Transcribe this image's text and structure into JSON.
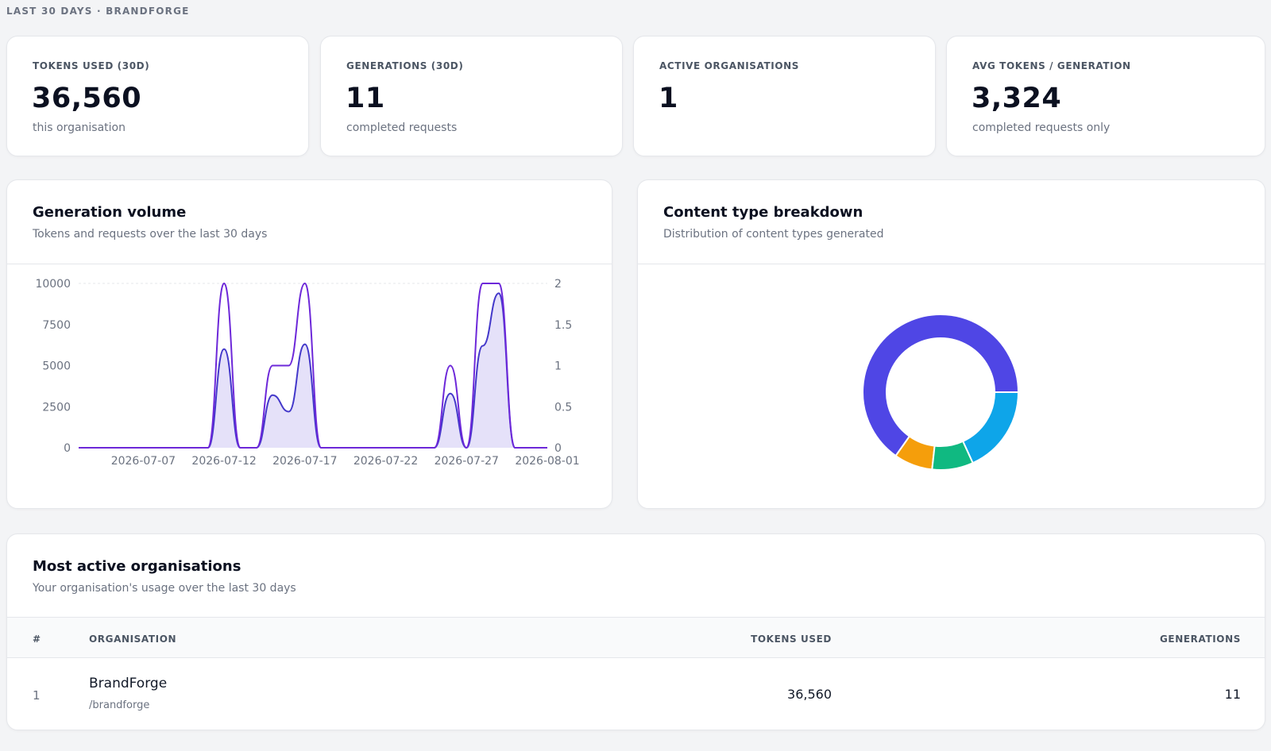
{
  "header": {
    "context": "LAST 30 DAYS · BRANDFORGE"
  },
  "stats": [
    {
      "label": "TOKENS USED (30D)",
      "value": "36,560",
      "sub": "this organisation"
    },
    {
      "label": "GENERATIONS (30D)",
      "value": "11",
      "sub": "completed requests"
    },
    {
      "label": "ACTIVE ORGANISATIONS",
      "value": "1",
      "sub": ""
    },
    {
      "label": "AVG TOKENS / GENERATION",
      "value": "3,324",
      "sub": "completed requests only"
    }
  ],
  "volume": {
    "title": "Generation volume",
    "subtitle": "Tokens and requests over the last 30 days"
  },
  "breakdown": {
    "title": "Content type breakdown",
    "subtitle": "Distribution of content types generated"
  },
  "orgs": {
    "title": "Most active organisations",
    "subtitle": "Your organisation's usage over the last 30 days",
    "columns": {
      "rank": "#",
      "org": "ORGANISATION",
      "tokens": "TOKENS USED",
      "gens": "GENERATIONS"
    },
    "rows": [
      {
        "rank": "1",
        "name": "BrandForge",
        "slug": "/brandforge",
        "tokens": "36,560",
        "gens": "11"
      }
    ]
  },
  "chart_data": [
    {
      "type": "line",
      "x_ticks": [
        "2026-07-07",
        "2026-07-12",
        "2026-07-17",
        "2026-07-22",
        "2026-07-27",
        "2026-08-01"
      ],
      "y_ticks_left": [
        "0",
        "2500",
        "5000",
        "7500",
        "10000"
      ],
      "y_ticks_right": [
        "0",
        "0.5",
        "1",
        "1.5",
        "2"
      ],
      "ylim_left": [
        0,
        10000
      ],
      "ylim_right": [
        0,
        2
      ],
      "x": [
        "2026-07-03",
        "2026-07-04",
        "2026-07-05",
        "2026-07-06",
        "2026-07-07",
        "2026-07-08",
        "2026-07-09",
        "2026-07-10",
        "2026-07-11",
        "2026-07-12",
        "2026-07-13",
        "2026-07-14",
        "2026-07-15",
        "2026-07-16",
        "2026-07-17",
        "2026-07-18",
        "2026-07-19",
        "2026-07-20",
        "2026-07-21",
        "2026-07-22",
        "2026-07-23",
        "2026-07-24",
        "2026-07-25",
        "2026-07-26",
        "2026-07-27",
        "2026-07-28",
        "2026-07-29",
        "2026-07-30",
        "2026-07-31",
        "2026-08-01"
      ],
      "series": [
        {
          "axis": "left",
          "fill": true,
          "values": [
            0,
            0,
            0,
            0,
            0,
            0,
            0,
            0,
            0,
            6000,
            0,
            0,
            3200,
            2200,
            6300,
            0,
            0,
            0,
            0,
            0,
            0,
            0,
            0,
            3300,
            0,
            6200,
            9400,
            0,
            0,
            0
          ]
        },
        {
          "axis": "right",
          "fill": false,
          "values": [
            0,
            0,
            0,
            0,
            0,
            0,
            0,
            0,
            0,
            2,
            0,
            0,
            1,
            1,
            2,
            0,
            0,
            0,
            0,
            0,
            0,
            0,
            0,
            1,
            0,
            2,
            2,
            0,
            0,
            0
          ]
        }
      ],
      "colors": {
        "line": "#6d28d9",
        "fill": "#e0dcf8",
        "grid": "#e5e7eb",
        "tick": "#6b7280"
      }
    },
    {
      "type": "pie",
      "donut": true,
      "values": [
        61,
        7.5,
        8,
        17
      ],
      "colors": [
        "#4f46e5",
        "#f59e0b",
        "#10b981",
        "#0ea5e9"
      ]
    }
  ]
}
